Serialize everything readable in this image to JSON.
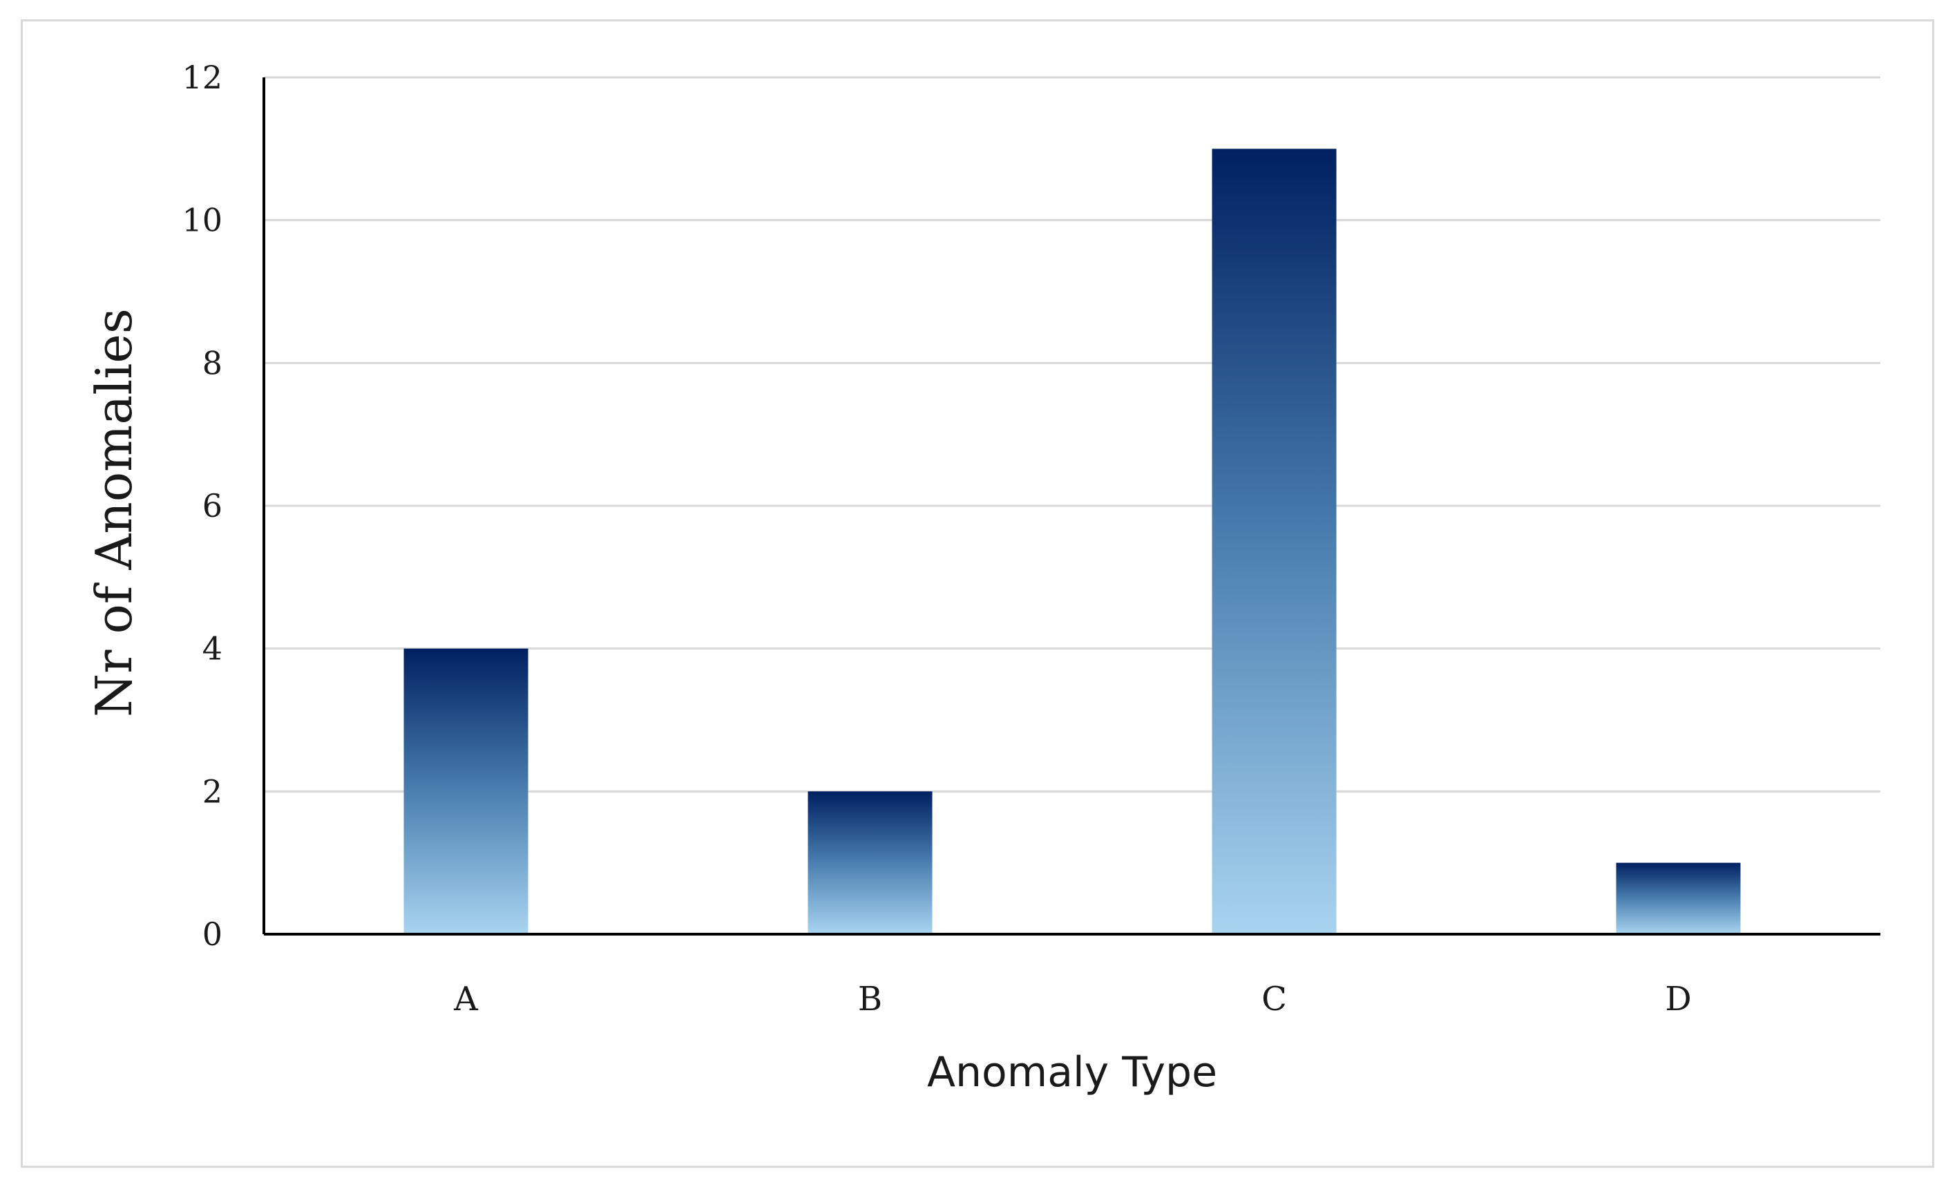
{
  "chart_data": {
    "type": "bar",
    "title": "",
    "xlabel": "Anomaly Type",
    "ylabel": "Nr of Anomalies",
    "categories": [
      "A",
      "B",
      "C",
      "D"
    ],
    "values": [
      4,
      2,
      11,
      1
    ],
    "ylim": [
      0,
      12
    ],
    "yticks": [
      0,
      2,
      4,
      6,
      8,
      10,
      12
    ],
    "grid": true,
    "legend": "none",
    "colors": {
      "bar_top": "#002060",
      "bar_mid": "#4a7fb0",
      "bar_bottom": "#a9d4f0",
      "grid": "#d9d9d9",
      "axis": "#000000"
    }
  }
}
